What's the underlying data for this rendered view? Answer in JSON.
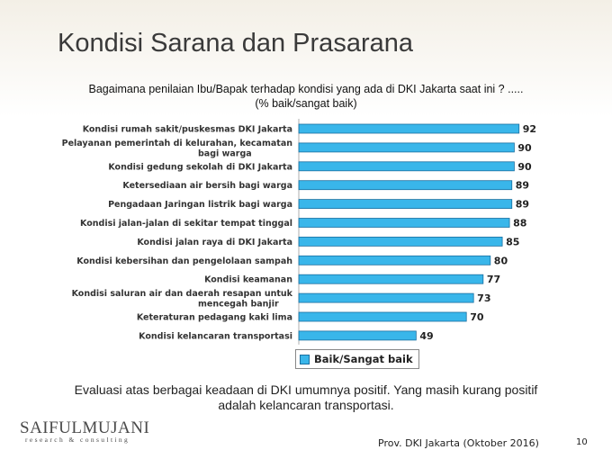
{
  "slide": {
    "title": "Kondisi Sarana dan Prasarana",
    "question_line1": "Bagaimana penilaian Ibu/Bapak terhadap kondisi yang ada di DKI Jakarta saat ini ? .....",
    "question_line2": "(% baik/sangat baik)",
    "conclusion_line1": "Evaluasi atas berbagai keadaan di DKI umumnya positif. Yang masih kurang positif",
    "conclusion_line2": "adalah kelancaran transportasi.",
    "logo_main": "SAIFULMUJANI",
    "logo_sub": "research & consulting",
    "footer": "Prov. DKI Jakarta (Oktober 2016)",
    "page_number": "10"
  },
  "colors": {
    "bar_fill": "#39b6ea",
    "bar_border": "#1a6fa0"
  },
  "chart_data": {
    "type": "bar",
    "orientation": "horizontal",
    "categories": [
      [
        "Kondisi rumah sakit/puskesmas DKI Jakarta"
      ],
      [
        "Pelayanan pemerintah di kelurahan, kecamatan",
        "bagi warga"
      ],
      [
        "Kondisi gedung sekolah di DKI Jakarta"
      ],
      [
        "Ketersediaan air bersih bagi warga"
      ],
      [
        "Pengadaan Jaringan listrik bagi warga"
      ],
      [
        "Kondisi jalan-jalan di sekitar tempat tinggal"
      ],
      [
        "Kondisi jalan raya di DKI Jakarta"
      ],
      [
        "Kondisi kebersihan dan pengelolaan sampah"
      ],
      [
        "Kondisi keamanan"
      ],
      [
        "Kondisi saluran air dan daerah resapan untuk",
        "mencegah banjir"
      ],
      [
        "Keteraturan pedagang kaki lima"
      ],
      [
        "Kondisi kelancaran transportasi"
      ]
    ],
    "series": [
      {
        "name": "Baik/Sangat baik",
        "values": [
          92,
          90,
          90,
          89,
          89,
          88,
          85,
          80,
          77,
          73,
          70,
          49
        ]
      }
    ],
    "xlim": [
      0,
      100
    ],
    "legend": "bottom",
    "grid": false
  }
}
